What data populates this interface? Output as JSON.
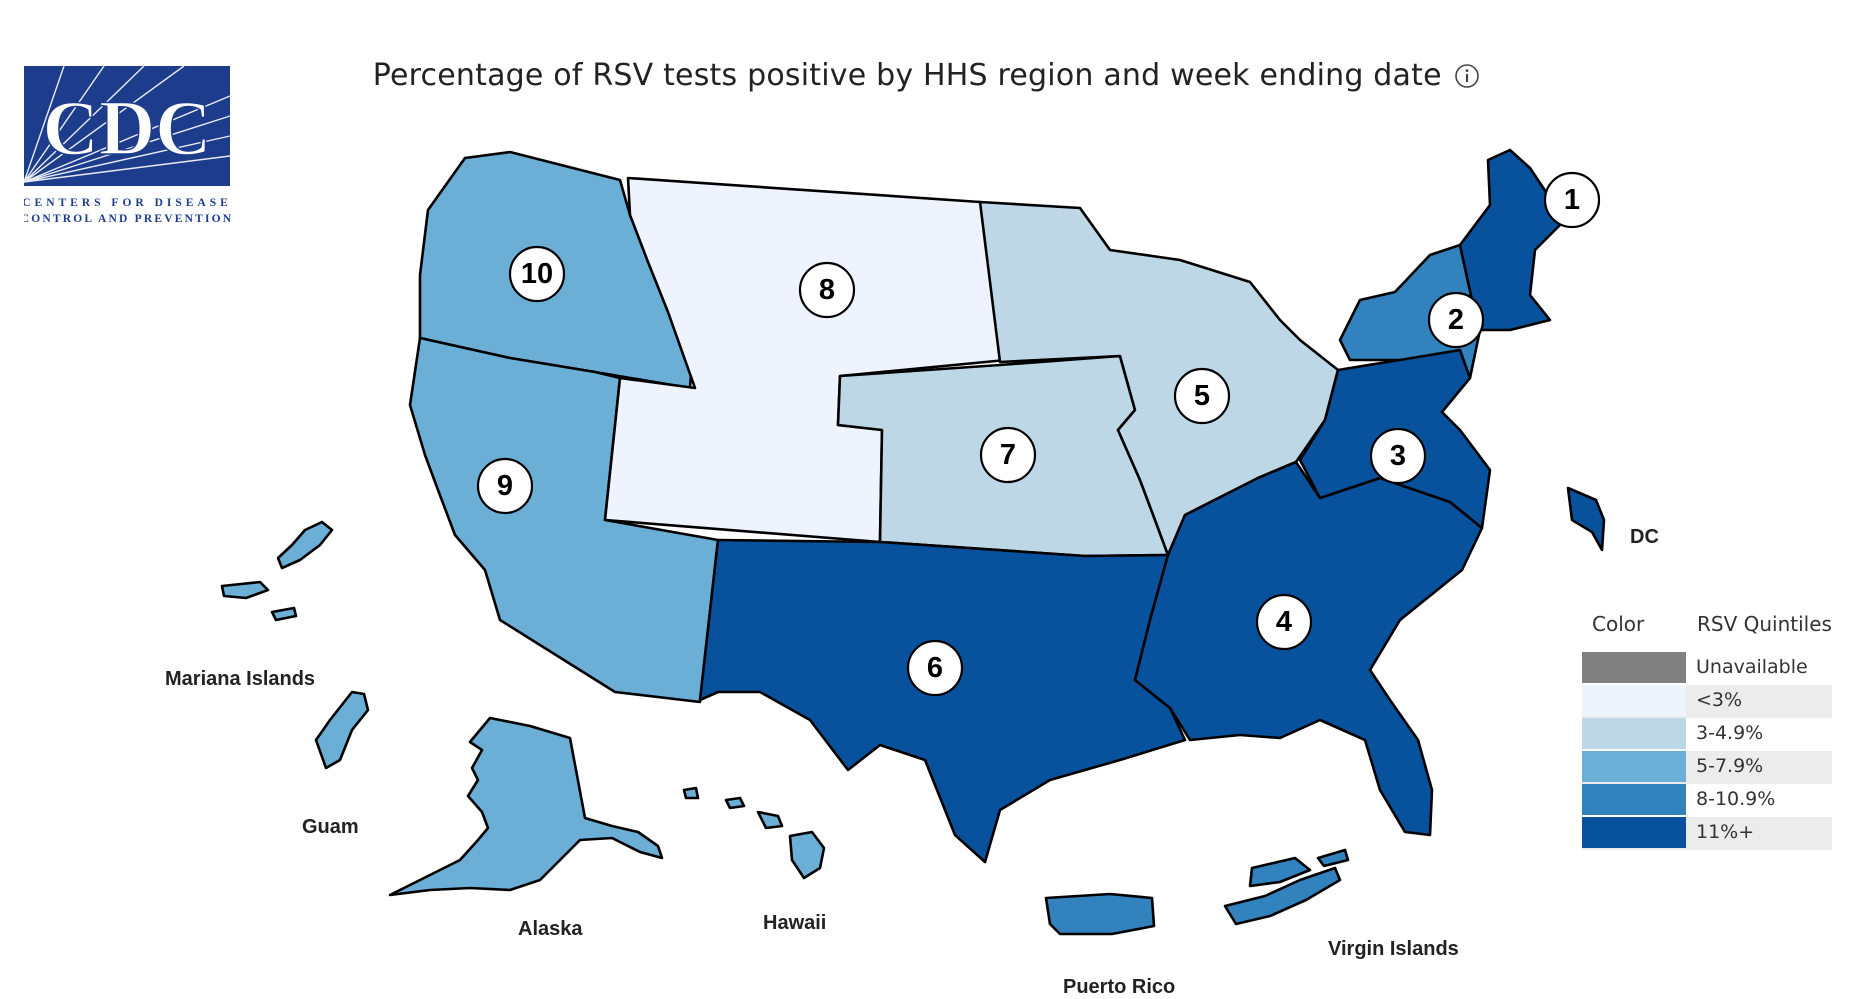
{
  "header": {
    "title": "Percentage of RSV tests positive by HHS region and week ending date",
    "info_icon": "info-icon"
  },
  "logo": {
    "wordmark": "CDC",
    "line1": "CENTERS FOR DISEASE",
    "line2": "CONTROL AND PREVENTION",
    "colors": {
      "blue": "#1d3c8c",
      "white": "#ffffff"
    }
  },
  "legend": {
    "color_header": "Color",
    "quintile_header": "RSV Quintiles",
    "items": [
      {
        "label": "Unavailable",
        "color": "#808080"
      },
      {
        "label": "<3%",
        "color": "#eef3fd"
      },
      {
        "label": "3-4.9%",
        "color": "#bdd7e7"
      },
      {
        "label": "5-7.9%",
        "color": "#6baed6"
      },
      {
        "label": "8-10.9%",
        "color": "#3182bd"
      },
      {
        "label": "11%+",
        "color": "#08519c"
      }
    ]
  },
  "regions": [
    {
      "number": "1",
      "quintile": "11%+"
    },
    {
      "number": "2",
      "quintile": "8-10.9%"
    },
    {
      "number": "3",
      "quintile": "11%+"
    },
    {
      "number": "4",
      "quintile": "11%+"
    },
    {
      "number": "5",
      "quintile": "3-4.9%"
    },
    {
      "number": "6",
      "quintile": "11%+"
    },
    {
      "number": "7",
      "quintile": "3-4.9%"
    },
    {
      "number": "8",
      "quintile": "<3%"
    },
    {
      "number": "9",
      "quintile": "5-7.9%"
    },
    {
      "number": "10",
      "quintile": "5-7.9%"
    }
  ],
  "territories": [
    {
      "label": "Mariana Islands",
      "quintile": "5-7.9%"
    },
    {
      "label": "Guam",
      "quintile": "5-7.9%"
    },
    {
      "label": "Alaska",
      "quintile": "5-7.9%"
    },
    {
      "label": "Hawaii",
      "quintile": "5-7.9%"
    },
    {
      "label": "Puerto Rico",
      "quintile": "8-10.9%"
    },
    {
      "label": "Virgin Islands",
      "quintile": "8-10.9%"
    },
    {
      "label": "DC",
      "quintile": "11%+"
    }
  ]
}
